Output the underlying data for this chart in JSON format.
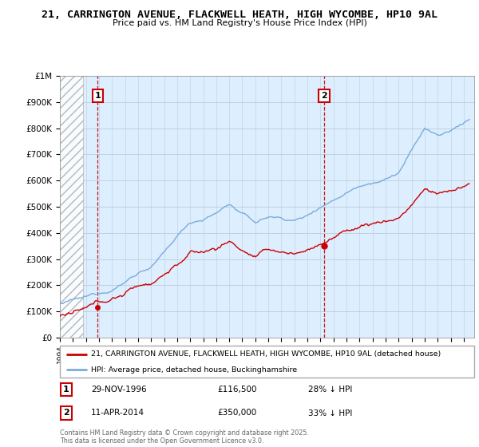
{
  "title": "21, CARRINGTON AVENUE, FLACKWELL HEATH, HIGH WYCOMBE, HP10 9AL",
  "subtitle": "Price paid vs. HM Land Registry's House Price Index (HPI)",
  "ylim": [
    0,
    1000000
  ],
  "xlim_start": 1994.0,
  "xlim_end": 2025.8,
  "yticks": [
    0,
    100000,
    200000,
    300000,
    400000,
    500000,
    600000,
    700000,
    800000,
    900000,
    1000000
  ],
  "ytick_labels": [
    "£0",
    "£100K",
    "£200K",
    "£300K",
    "£400K",
    "£500K",
    "£600K",
    "£700K",
    "£800K",
    "£900K",
    "£1M"
  ],
  "hatch_end_year": 1995.75,
  "point1_year": 1996.91,
  "point1_value": 116500,
  "point2_year": 2014.28,
  "point2_value": 350000,
  "red_line_color": "#cc0000",
  "blue_line_color": "#7aacda",
  "chart_bg_color": "#ddeeff",
  "background_color": "#ffffff",
  "grid_color": "#bbccdd",
  "legend_label_red": "21, CARRINGTON AVENUE, FLACKWELL HEATH, HIGH WYCOMBE, HP10 9AL (detached house)",
  "legend_label_blue": "HPI: Average price, detached house, Buckinghamshire",
  "point1_date": "29-NOV-1996",
  "point1_price": "£116,500",
  "point1_note": "28% ↓ HPI",
  "point2_date": "11-APR-2014",
  "point2_price": "£350,000",
  "point2_note": "33% ↓ HPI",
  "footer": "Contains HM Land Registry data © Crown copyright and database right 2025.\nThis data is licensed under the Open Government Licence v3.0.",
  "hpi_base_years": [
    1994.0,
    1995.0,
    1996.0,
    1997.0,
    1998.0,
    1999.0,
    2000.0,
    2001.0,
    2002.0,
    2003.0,
    2004.0,
    2005.0,
    2006.0,
    2007.0,
    2008.0,
    2009.0,
    2010.0,
    2011.0,
    2012.0,
    2013.0,
    2014.0,
    2015.0,
    2016.0,
    2017.0,
    2018.0,
    2019.0,
    2020.0,
    2021.0,
    2022.0,
    2023.0,
    2024.0,
    2025.5
  ],
  "hpi_base_values": [
    128000,
    138000,
    145000,
    162000,
    183000,
    213000,
    252000,
    275000,
    323000,
    385000,
    440000,
    456000,
    478000,
    515000,
    475000,
    440000,
    462000,
    458000,
    450000,
    468000,
    508000,
    535000,
    568000,
    598000,
    618000,
    630000,
    655000,
    735000,
    820000,
    790000,
    805000,
    855000
  ],
  "red_base_years": [
    1994.0,
    1995.0,
    1996.0,
    1997.0,
    1998.0,
    1999.0,
    2000.0,
    2001.0,
    2002.0,
    2003.0,
    2004.0,
    2005.0,
    2006.0,
    2007.0,
    2008.0,
    2009.0,
    2010.0,
    2011.0,
    2012.0,
    2013.0,
    2014.0,
    2015.0,
    2016.0,
    2017.0,
    2018.0,
    2019.0,
    2020.0,
    2021.0,
    2022.0,
    2023.0,
    2024.0,
    2025.5
  ],
  "red_base_values": [
    80000,
    86000,
    91000,
    108000,
    125000,
    148000,
    178000,
    192000,
    230000,
    270000,
    310000,
    312000,
    328000,
    355000,
    323000,
    296000,
    315000,
    308000,
    302000,
    315000,
    345000,
    365000,
    390000,
    410000,
    423000,
    430000,
    445000,
    498000,
    555000,
    537000,
    548000,
    575000
  ]
}
